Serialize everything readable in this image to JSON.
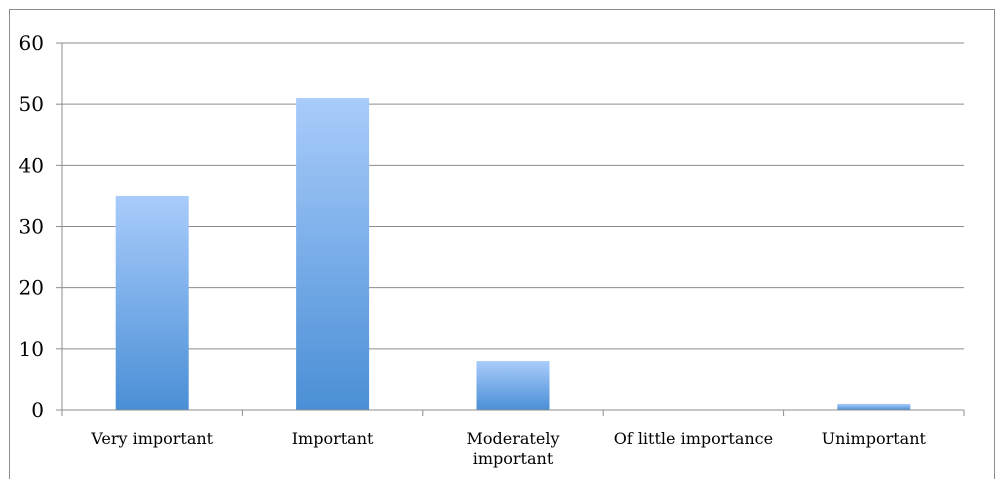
{
  "chart_data": {
    "type": "bar",
    "title": "",
    "xlabel": "",
    "ylabel": "",
    "categories": [
      "Very important",
      "Important",
      "Moderately important",
      "Of little importance",
      "Unimportant"
    ],
    "category_lines": [
      [
        "Very important"
      ],
      [
        "Important"
      ],
      [
        "Moderately",
        "important"
      ],
      [
        "Of little importance"
      ],
      [
        "Unimportant"
      ]
    ],
    "values": [
      35,
      51,
      8,
      0,
      1
    ],
    "ylim": [
      0,
      60
    ],
    "yticks": [
      0,
      10,
      20,
      30,
      40,
      50,
      60
    ],
    "grid": true,
    "legend": "none",
    "colors": {
      "bar_top": "#a9ccfb",
      "bar_bottom": "#4a8fd6",
      "grid": "#8c8c8c",
      "axis": "#8c8c8c"
    }
  }
}
